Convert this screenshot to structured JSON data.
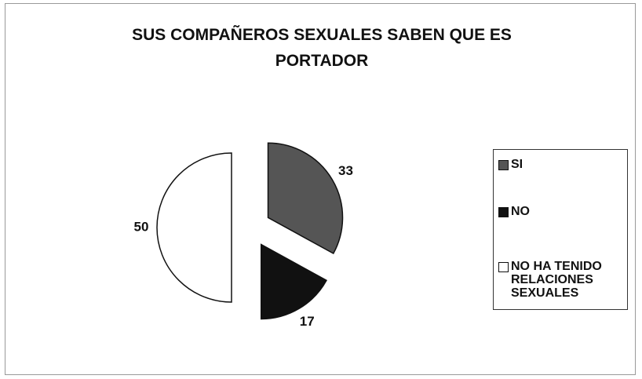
{
  "chart_data": {
    "type": "pie",
    "title": "SUS COMPAÑEROS SEXUALES SABEN QUE ES PORTADOR",
    "categories": [
      "SI",
      "NO",
      "NO HA TENIDO RELACIONES SEXUALES"
    ],
    "values": [
      33,
      17,
      50
    ],
    "colors": [
      "#555555",
      "#111111",
      "#ffffff"
    ],
    "legend": "right"
  }
}
